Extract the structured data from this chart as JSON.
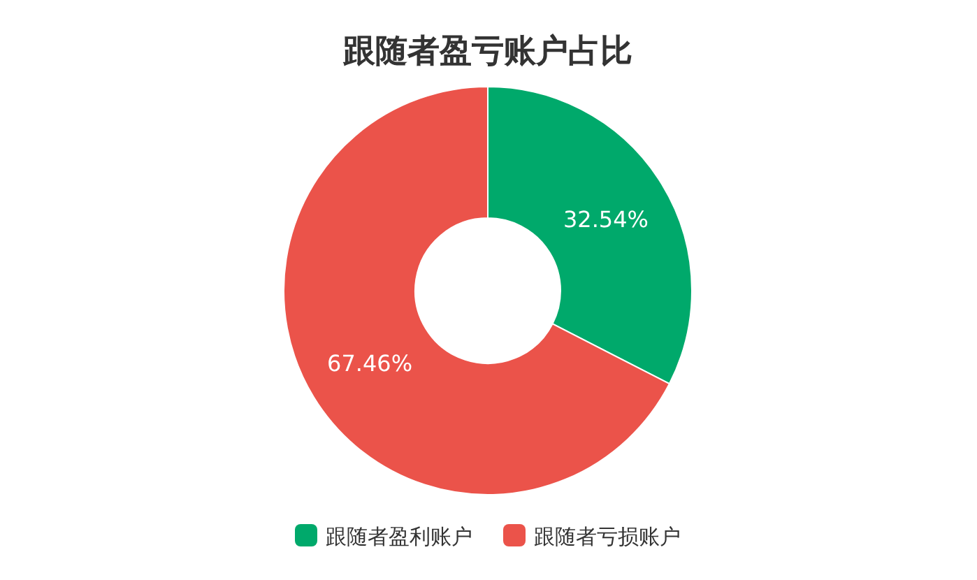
{
  "chart_data": {
    "type": "donut",
    "title": "跟随者盈亏账户占比",
    "categories": [
      "跟随者盈利账户",
      "跟随者亏损账户"
    ],
    "values": [
      32.54,
      67.46
    ],
    "colors": [
      "#00a96b",
      "#eb534a"
    ],
    "value_labels": [
      "32.54%",
      "67.46%"
    ],
    "legend": "bottom"
  }
}
